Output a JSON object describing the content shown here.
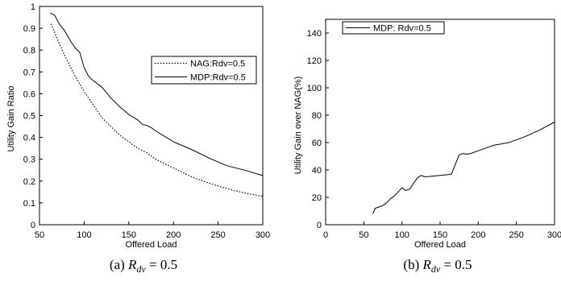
{
  "chart_data": [
    {
      "type": "line",
      "caption": "(a)",
      "caption_var": "R",
      "caption_sub": "dv",
      "caption_value": " = 0.5",
      "xlabel": "Offered Load",
      "ylabel": "Utility Gain Ratio",
      "xlim": [
        50,
        300
      ],
      "ylim": [
        0,
        1
      ],
      "xticks": [
        "50",
        "100",
        "150",
        "200",
        "250",
        "300"
      ],
      "yticks": [
        "0",
        "0.1",
        "0.2",
        "0.3",
        "0.4",
        "0.5",
        "0.6",
        "0.7",
        "0.8",
        "0.9",
        "1"
      ],
      "grid": false,
      "legend_position": "right",
      "series": [
        {
          "name": "NAG:Rdv=0.5",
          "style": "dotted",
          "x": [
            63,
            70,
            80,
            90,
            100,
            110,
            120,
            130,
            140,
            150,
            160,
            170,
            180,
            190,
            200,
            220,
            240,
            260,
            280,
            300
          ],
          "y": [
            0.92,
            0.85,
            0.76,
            0.68,
            0.61,
            0.55,
            0.49,
            0.45,
            0.41,
            0.38,
            0.35,
            0.33,
            0.3,
            0.28,
            0.26,
            0.22,
            0.19,
            0.165,
            0.145,
            0.13
          ]
        },
        {
          "name": "MDP:Rdv=0.5",
          "style": "solid",
          "x": [
            62,
            67,
            72,
            78,
            85,
            90,
            95,
            100,
            105,
            110,
            120,
            130,
            140,
            150,
            160,
            165,
            170,
            175,
            180,
            190,
            200,
            220,
            240,
            260,
            280,
            300
          ],
          "y": [
            0.97,
            0.96,
            0.92,
            0.89,
            0.84,
            0.81,
            0.79,
            0.72,
            0.68,
            0.66,
            0.63,
            0.58,
            0.54,
            0.505,
            0.48,
            0.46,
            0.455,
            0.445,
            0.43,
            0.405,
            0.38,
            0.345,
            0.305,
            0.27,
            0.25,
            0.225
          ]
        }
      ]
    },
    {
      "type": "line",
      "caption": "(b)",
      "caption_var": "R",
      "caption_sub": "dv",
      "caption_value": " = 0.5",
      "xlabel": "Offered Load",
      "ylabel": "Utility Gain over NAG(%)",
      "xlim": [
        0,
        300
      ],
      "ylim": [
        0,
        150
      ],
      "xticks": [
        "0",
        "50",
        "100",
        "150",
        "200",
        "250",
        "300"
      ],
      "yticks": [
        "0",
        "20",
        "40",
        "60",
        "80",
        "100",
        "120",
        "140"
      ],
      "grid": false,
      "legend_position": "top-left",
      "series": [
        {
          "name": "MDP: Rdv=0.5",
          "style": "solid",
          "x": [
            62,
            65,
            70,
            75,
            80,
            85,
            90,
            95,
            100,
            105,
            110,
            115,
            120,
            125,
            130,
            140,
            150,
            160,
            165,
            170,
            175,
            180,
            185,
            190,
            200,
            210,
            220,
            240,
            260,
            280,
            300
          ],
          "y": [
            8,
            12,
            13,
            14,
            16,
            19,
            21,
            24,
            27,
            25,
            26,
            30,
            34,
            36,
            35,
            35.5,
            36,
            36.5,
            37,
            44,
            51,
            52,
            51.5,
            52,
            54,
            56,
            58,
            60,
            64,
            69,
            75
          ]
        }
      ]
    }
  ]
}
